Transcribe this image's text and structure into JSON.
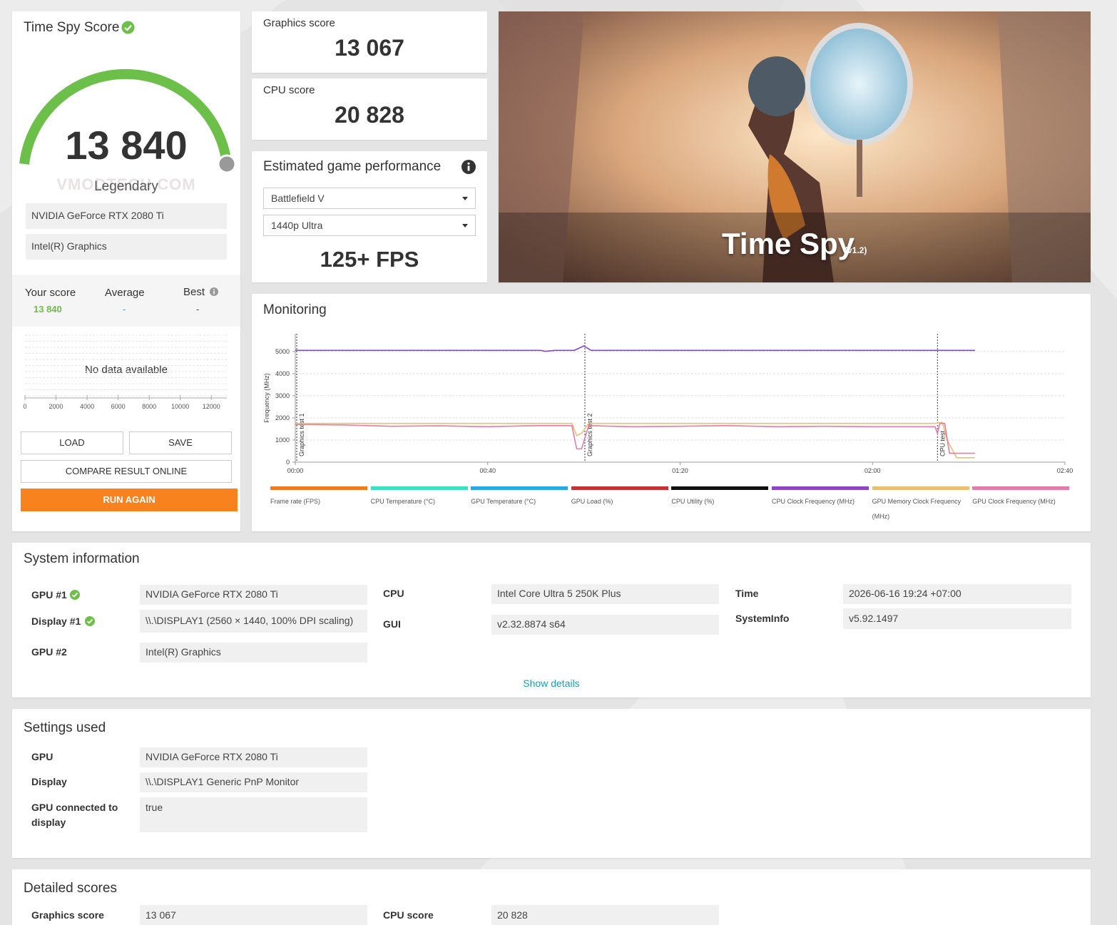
{
  "score_card": {
    "title": "Time Spy Score",
    "score": "13 840",
    "rank": "Legendary",
    "gpu": "NVIDIA GeForce RTX 2080 Ti",
    "gpu2": "Intel(R) Graphics",
    "watermark": "VMODTECH.COM"
  },
  "comparison": {
    "headers": [
      "Your score",
      "Average",
      "Best"
    ],
    "values": [
      "13 840",
      "-",
      "-"
    ]
  },
  "histogram": {
    "message": "No data available",
    "xlim": [
      0,
      13000
    ],
    "xticks": [
      0,
      2000,
      4000,
      6000,
      8000,
      10000,
      12000
    ]
  },
  "buttons": {
    "load": "LOAD",
    "save": "SAVE",
    "compare": "COMPARE RESULT ONLINE",
    "run": "RUN AGAIN"
  },
  "graphics_score": {
    "label": "Graphics score",
    "value": "13 067"
  },
  "cpu_score": {
    "label": "CPU score",
    "value": "20 828"
  },
  "game_performance": {
    "title": "Estimated game performance",
    "game": "Battlefield V",
    "preset": "1440p Ultra",
    "fps": "125+ FPS"
  },
  "banner": {
    "title": "Time Spy",
    "version": "(v1.2)"
  },
  "monitoring": {
    "title": "Monitoring",
    "y_label": "Frequency (MHz)",
    "ylim": [
      0,
      5800
    ],
    "yticks": [
      0,
      1000,
      2000,
      3000,
      4000,
      5000
    ],
    "xlim": [
      0,
      160
    ],
    "xticks": [
      {
        "value": 0,
        "label": "00:00"
      },
      {
        "value": 40,
        "label": "00:40"
      },
      {
        "value": 80,
        "label": "01:20"
      },
      {
        "value": 120,
        "label": "02:00"
      },
      {
        "value": 160,
        "label": "02:40"
      }
    ],
    "markers": [
      {
        "label": "Graphics test 1",
        "x": 0.3
      },
      {
        "label": "Graphics test 2",
        "x": 60.2
      },
      {
        "label": "CPU test",
        "x": 133.5
      }
    ],
    "series": [
      {
        "name": "Frame rate (FPS)",
        "color": "#f07d22",
        "x": [],
        "values": []
      },
      {
        "name": "CPU Temperature (°C)",
        "color": "#3de0c0",
        "x": [],
        "values": []
      },
      {
        "name": "GPU Temperature (°C)",
        "color": "#28a8e8",
        "x": [],
        "values": []
      },
      {
        "name": "GPU Load (%)",
        "color": "#c63232",
        "x": [],
        "values": []
      },
      {
        "name": "CPU Utility (%)",
        "color": "#111111",
        "x": [],
        "values": []
      },
      {
        "name": "CPU Clock Frequency (MHz)",
        "color": "#8e44c8",
        "x": [
          0,
          51,
          52,
          54,
          58,
          60,
          61.5,
          141.3
        ],
        "values": [
          5050,
          5050,
          5010,
          5050,
          5050,
          5250,
          5050,
          5050
        ]
      },
      {
        "name": "GPU Memory Clock Frequency (MHz)",
        "color": "#e8c070",
        "x": [
          0,
          57.5,
          58.5,
          59.5,
          61,
          133,
          134.5,
          135.5,
          137.5,
          141.3
        ],
        "values": [
          1750,
          1750,
          1200,
          1300,
          1750,
          1750,
          1800,
          1000,
          200,
          200
        ]
      },
      {
        "name": "GPU Clock Frequency (MHz)",
        "color": "#e67aa8",
        "x": [
          0,
          10,
          20,
          30,
          40,
          50,
          57.5,
          58.5,
          59.5,
          61,
          70,
          80,
          90,
          100,
          110,
          120,
          133,
          133.5,
          134,
          135,
          136,
          141.3
        ],
        "values": [
          1700,
          1680,
          1620,
          1640,
          1600,
          1650,
          1650,
          600,
          600,
          1650,
          1600,
          1620,
          1650,
          1600,
          1620,
          1600,
          1600,
          1300,
          1750,
          1750,
          400,
          400
        ]
      }
    ]
  },
  "system_information": {
    "title": "System information",
    "show_details": "Show details",
    "rows": [
      {
        "label": "GPU #1",
        "value": "NVIDIA GeForce RTX 2080 Ti"
      },
      {
        "label": "Display #1",
        "value": "\\\\.\\DISPLAY1 (2560 × 1440, 100% DPI scaling)"
      },
      {
        "label": "GPU #2",
        "value": "Intel(R) Graphics"
      },
      {
        "label": "CPU",
        "value": "Intel Core Ultra 5 250K Plus"
      },
      {
        "label": "GUI",
        "value": "v2.32.8874 s64"
      },
      {
        "label": "Time",
        "value": "2026-06-16 19:24 +07:00"
      },
      {
        "label": "SystemInfo",
        "value": "v5.92.1497"
      }
    ]
  },
  "settings_used": {
    "title": "Settings used",
    "rows": [
      {
        "label": "GPU",
        "value": "NVIDIA GeForce RTX 2080 Ti"
      },
      {
        "label": "Display",
        "value": "\\\\.\\DISPLAY1 Generic PnP Monitor"
      },
      {
        "label": "GPU connected to display",
        "value": "true"
      }
    ]
  },
  "detailed_scores": {
    "title": "Detailed scores",
    "rows": [
      {
        "label": "Graphics score",
        "value": "13 067"
      },
      {
        "label": "CPU score",
        "value": "20 828"
      }
    ]
  }
}
